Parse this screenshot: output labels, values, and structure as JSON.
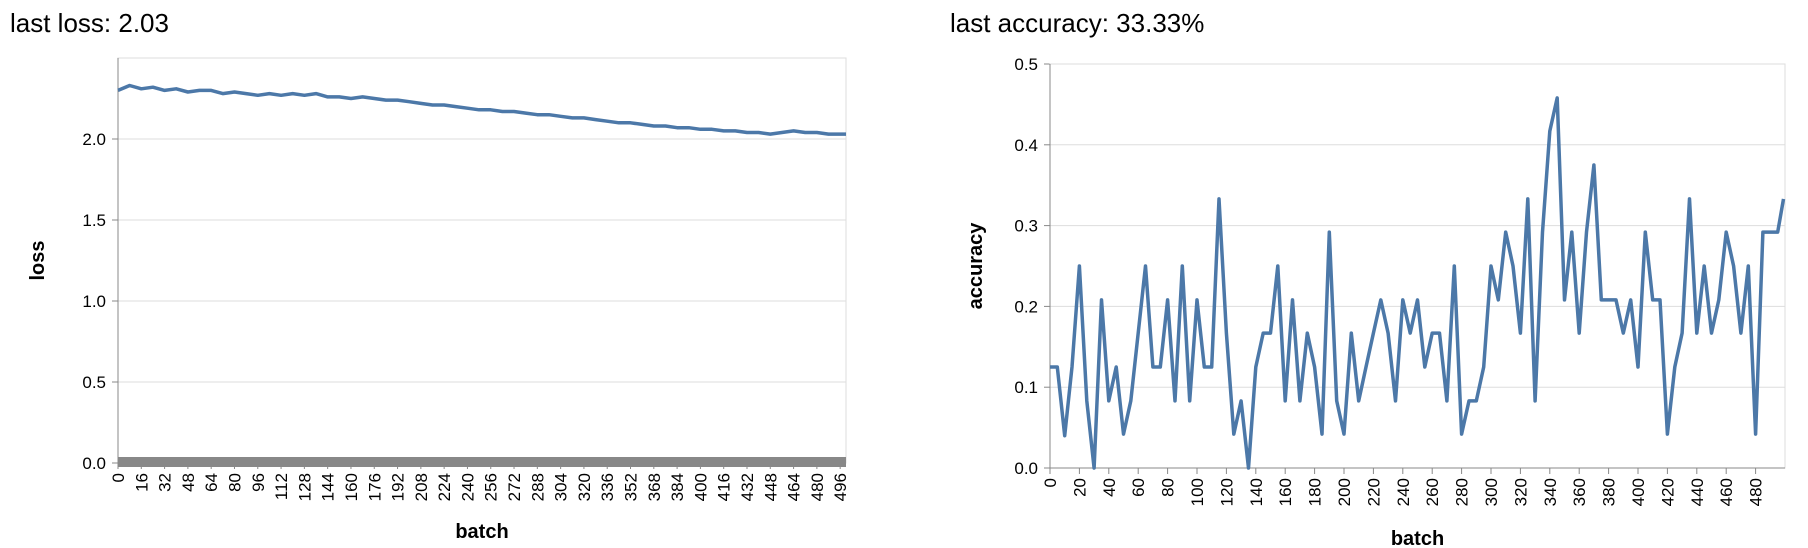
{
  "loss_panel": {
    "status_text": "last loss: 2.03",
    "chart_data": {
      "type": "line",
      "title": "",
      "xlabel": "batch",
      "ylabel": "loss",
      "xlim": [
        0,
        500
      ],
      "ylim": [
        0,
        2.5
      ],
      "grid": true,
      "x_tick_labels": [
        "0",
        "16",
        "32",
        "48",
        "64",
        "80",
        "96",
        "112",
        "128",
        "144",
        "160",
        "176",
        "192",
        "208",
        "224",
        "240",
        "256",
        "272",
        "288",
        "304",
        "320",
        "336",
        "352",
        "368",
        "384",
        "400",
        "416",
        "432",
        "448",
        "464",
        "480",
        "496"
      ],
      "y_tick_labels": [
        "0.0",
        "0.5",
        "1.0",
        "1.5",
        "2.0"
      ],
      "line_color": "#4c78a8",
      "series": [
        {
          "x": [
            0,
            8,
            16,
            24,
            32,
            40,
            48,
            56,
            64,
            72,
            80,
            88,
            96,
            104,
            112,
            120,
            128,
            136,
            144,
            152,
            160,
            168,
            176,
            184,
            192,
            200,
            208,
            216,
            224,
            232,
            240,
            248,
            256,
            264,
            272,
            280,
            288,
            296,
            304,
            312,
            320,
            328,
            336,
            344,
            352,
            360,
            368,
            376,
            384,
            392,
            400,
            408,
            416,
            424,
            432,
            440,
            448,
            456,
            464,
            472,
            480,
            488,
            496,
            500
          ],
          "y": [
            2.3,
            2.33,
            2.31,
            2.32,
            2.3,
            2.31,
            2.29,
            2.3,
            2.3,
            2.28,
            2.29,
            2.28,
            2.27,
            2.28,
            2.27,
            2.28,
            2.27,
            2.28,
            2.26,
            2.26,
            2.25,
            2.26,
            2.25,
            2.24,
            2.24,
            2.23,
            2.22,
            2.21,
            2.21,
            2.2,
            2.19,
            2.18,
            2.18,
            2.17,
            2.17,
            2.16,
            2.15,
            2.15,
            2.14,
            2.13,
            2.13,
            2.12,
            2.11,
            2.1,
            2.1,
            2.09,
            2.08,
            2.08,
            2.07,
            2.07,
            2.06,
            2.06,
            2.05,
            2.05,
            2.04,
            2.04,
            2.03,
            2.04,
            2.05,
            2.04,
            2.04,
            2.03,
            2.03,
            2.03
          ]
        }
      ]
    }
  },
  "accuracy_panel": {
    "status_text": "last accuracy: 33.33%",
    "chart_data": {
      "type": "line",
      "title": "",
      "xlabel": "batch",
      "ylabel": "accuracy",
      "xlim": [
        0,
        500
      ],
      "ylim": [
        0,
        0.5
      ],
      "grid": true,
      "x_tick_labels": [
        "0",
        "20",
        "40",
        "60",
        "80",
        "100",
        "120",
        "140",
        "160",
        "180",
        "200",
        "220",
        "240",
        "260",
        "280",
        "300",
        "320",
        "340",
        "360",
        "380",
        "400",
        "420",
        "440",
        "460",
        "480"
      ],
      "y_tick_labels": [
        "0.0",
        "0.1",
        "0.2",
        "0.3",
        "0.4",
        "0.5"
      ],
      "line_color": "#4c78a8",
      "series": [
        {
          "x": [
            0,
            5,
            10,
            15,
            20,
            25,
            30,
            35,
            40,
            45,
            50,
            55,
            60,
            65,
            70,
            75,
            80,
            85,
            90,
            95,
            100,
            105,
            110,
            115,
            120,
            125,
            130,
            135,
            140,
            145,
            150,
            155,
            160,
            165,
            170,
            175,
            180,
            185,
            190,
            195,
            200,
            205,
            210,
            215,
            220,
            225,
            230,
            235,
            240,
            245,
            250,
            255,
            260,
            265,
            270,
            275,
            280,
            285,
            290,
            295,
            300,
            305,
            310,
            315,
            320,
            325,
            330,
            335,
            340,
            345,
            350,
            355,
            360,
            365,
            370,
            375,
            380,
            385,
            390,
            395,
            400,
            405,
            410,
            415,
            420,
            425,
            430,
            435,
            440,
            445,
            450,
            455,
            460,
            465,
            470,
            475,
            480,
            485,
            490,
            495,
            499
          ],
          "y": [
            0.125,
            0.125,
            0.04,
            0.125,
            0.25,
            0.083,
            0.0,
            0.208,
            0.083,
            0.125,
            0.042,
            0.083,
            0.167,
            0.25,
            0.125,
            0.125,
            0.208,
            0.083,
            0.25,
            0.083,
            0.208,
            0.125,
            0.125,
            0.333,
            0.167,
            0.042,
            0.083,
            0.0,
            0.125,
            0.167,
            0.167,
            0.25,
            0.083,
            0.208,
            0.083,
            0.167,
            0.125,
            0.042,
            0.292,
            0.083,
            0.042,
            0.167,
            0.083,
            0.125,
            0.167,
            0.208,
            0.167,
            0.083,
            0.208,
            0.167,
            0.208,
            0.125,
            0.167,
            0.167,
            0.083,
            0.25,
            0.042,
            0.083,
            0.083,
            0.125,
            0.25,
            0.208,
            0.292,
            0.25,
            0.167,
            0.333,
            0.083,
            0.292,
            0.417,
            0.458,
            0.208,
            0.292,
            0.167,
            0.292,
            0.375,
            0.208,
            0.208,
            0.208,
            0.167,
            0.208,
            0.125,
            0.292,
            0.208,
            0.208,
            0.042,
            0.125,
            0.167,
            0.333,
            0.167,
            0.25,
            0.167,
            0.208,
            0.292,
            0.25,
            0.167,
            0.25,
            0.042,
            0.292,
            0.292,
            0.292,
            0.333
          ]
        }
      ]
    }
  }
}
